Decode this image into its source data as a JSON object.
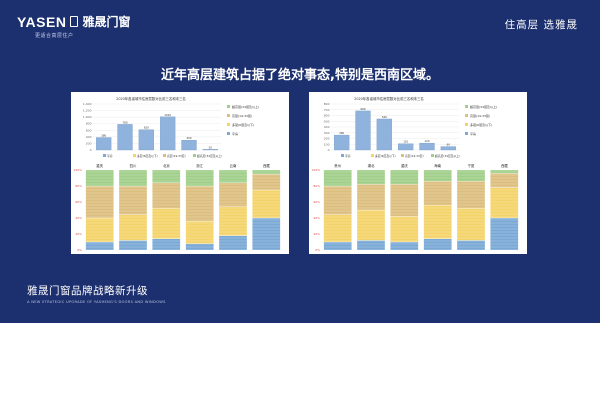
{
  "brand": {
    "name_en": "YASEN",
    "name_cn": "雅晟门窗",
    "tagline": "更适合高层住户"
  },
  "slogan": "住高层  选雅晟",
  "headline": "近年高层建筑占据了绝对事态,特别是西南区域。",
  "footer": {
    "title": "雅晟门窗品牌战略新升级",
    "subtitle": "A NEW STRATEGIC UPGRADE OF YASHENG'S DOORS AND WINDOWS"
  },
  "colors": {
    "background": "#1c2f6e",
    "bar_low": "#7aa9d6",
    "bar_mid": "#f4d46a",
    "bar_high": "#dcbf7e",
    "bar_super": "#9fcf88"
  },
  "chart_data": [
    {
      "type": "bar",
      "title": "2020年各省城市住房层数对比前三名和末三名",
      "legend": [
        "超高层(34层及以上)",
        "高层(19-33层)",
        "多层(6层及以下)",
        "平房"
      ],
      "legend_position": "right",
      "ylim": [
        0,
        1400
      ],
      "yticks": [
        "1,400",
        "1,200",
        "1,000",
        "800",
        "600",
        "400",
        "200",
        "0"
      ],
      "categories": [
        "重庆",
        "四川",
        "北京",
        "浙江",
        "云南",
        "西藏"
      ],
      "values": [
        380,
        780,
        620,
        1010,
        300,
        20
      ],
      "stack_pct_ticks": [
        "100%",
        "80%",
        "60%",
        "40%",
        "20%",
        "0%"
      ],
      "stack_legend": [
        "平房",
        "多层(6层及以下)",
        "高层(19-33层)",
        "超高层(34层及以上)"
      ],
      "series": [
        {
          "name": "平房",
          "values": [
            10,
            12,
            14,
            8,
            18,
            40
          ]
        },
        {
          "name": "多层(6层及以下)",
          "values": [
            30,
            32,
            38,
            28,
            36,
            35
          ]
        },
        {
          "name": "高层(19-33层)",
          "values": [
            40,
            36,
            32,
            44,
            30,
            20
          ]
        },
        {
          "name": "超高层(34层及以上)",
          "values": [
            20,
            20,
            16,
            20,
            16,
            5
          ]
        }
      ]
    },
    {
      "type": "bar",
      "title": "2020年各省城市住房层数对比前三名和末三名",
      "legend": [
        "超高层(34层及以上)",
        "高层(19-33层)",
        "多层(6层及以下)",
        "平房"
      ],
      "legend_position": "right",
      "ylim": [
        0,
        800
      ],
      "yticks": [
        "800",
        "700",
        "600",
        "500",
        "400",
        "300",
        "200",
        "100",
        "0"
      ],
      "categories": [
        "贵州",
        "湖北",
        "重庆",
        "海南",
        "宁夏",
        "西藏"
      ],
      "values": [
        260,
        680,
        540,
        110,
        120,
        60
      ],
      "stack_pct_ticks": [
        "100%",
        "80%",
        "60%",
        "40%",
        "20%",
        "0%"
      ],
      "stack_legend": [
        "平房",
        "多层(6层及以下)",
        "高层(19-33层)",
        "超高层(34层及以上)"
      ],
      "series": [
        {
          "name": "平房",
          "values": [
            10,
            12,
            10,
            14,
            12,
            40
          ]
        },
        {
          "name": "多层(6层及以下)",
          "values": [
            34,
            38,
            32,
            42,
            40,
            38
          ]
        },
        {
          "name": "高层(19-33层)",
          "values": [
            36,
            32,
            40,
            30,
            34,
            18
          ]
        },
        {
          "name": "超高层(34层及以上)",
          "values": [
            20,
            18,
            18,
            14,
            14,
            4
          ]
        }
      ]
    }
  ]
}
